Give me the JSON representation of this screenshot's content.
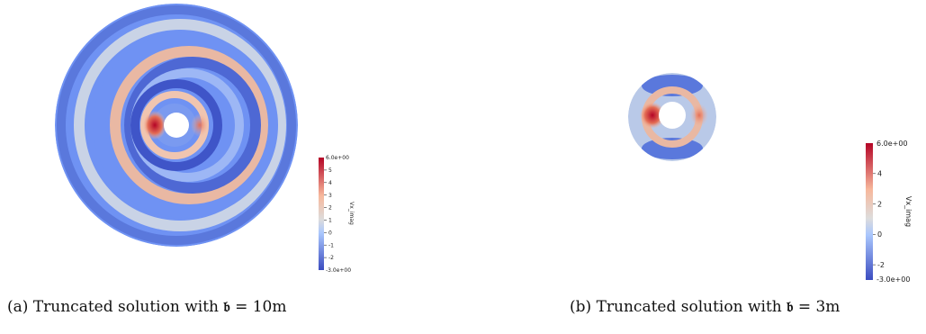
{
  "figures": [
    {
      "id": "a",
      "caption_label": "(a)",
      "caption_text": "Truncated solution with",
      "caption_symbol": "𝔟",
      "caption_value": "= 10m",
      "colorbar": {
        "title": "Vx_imag",
        "min_label": "-3.0e+00",
        "max_label": "6.0e+00",
        "ticks": [
          "5",
          "4",
          "3",
          "2",
          "1",
          "0",
          "-1",
          "-2"
        ]
      }
    },
    {
      "id": "b",
      "caption_label": "(b)",
      "caption_text": "Truncated solution with",
      "caption_symbol": "𝔟",
      "caption_value": "= 3m",
      "colorbar": {
        "title": "Vx_imag",
        "min_label": "-3.0e+00",
        "max_label": "6.0e+00",
        "ticks": [
          "4",
          "2",
          "0",
          "-2"
        ]
      }
    }
  ],
  "colors": {
    "deep_blue": "#3b4cc0",
    "mid_blue": "#6f92f3",
    "light_blue": "#aac7fd",
    "neutral": "#dddcdc",
    "light_red": "#f7b89c",
    "mid_red": "#e46e56",
    "deep_red": "#b40426"
  }
}
